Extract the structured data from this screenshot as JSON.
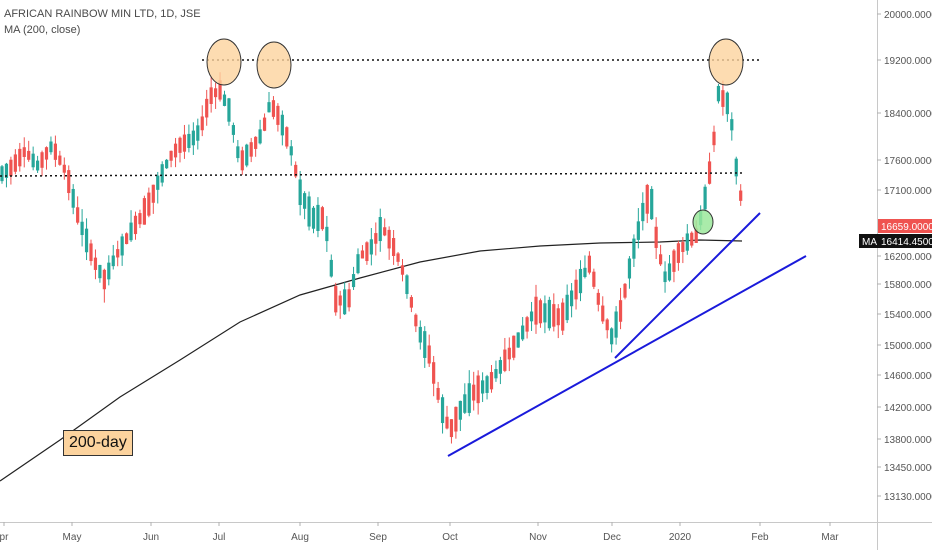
{
  "legend": {
    "title": "AFRICAN RAINBOW MIN LTD, 1D, JSE",
    "indicator": "MA (200, close)"
  },
  "annotation_label": "200-day",
  "price_tags": {
    "last": {
      "value": "16659.0000",
      "color": "#ef5350"
    },
    "ma_prefix": "MA",
    "ma": {
      "value": "16414.4500",
      "color": "#111111"
    }
  },
  "chart_data": {
    "type": "candlestick",
    "y_axis_ticks": [
      20000,
      19200,
      18400,
      17600,
      17100,
      16659,
      16200,
      15800,
      15400,
      15000,
      14600,
      14200,
      13800,
      13450,
      13130
    ],
    "y_axis_labels": [
      "20000.0000",
      "19200.0000",
      "18400.0000",
      "17600.0000",
      "17100.0000",
      "16659.0000",
      "16200.0000",
      "15800.0000",
      "15400.0000",
      "15000.0000",
      "14600.0000",
      "14200.0000",
      "13800.0000",
      "13450.0000",
      "13130.0000"
    ],
    "x_axis_labels": [
      "pr",
      "May",
      "Jun",
      "Jul",
      "Aug",
      "Sep",
      "Oct",
      "Nov",
      "Dec",
      "2020",
      "Feb",
      "Mar"
    ],
    "up_color": "#26a69a",
    "down_color": "#ef5350",
    "ma_color": "#222222",
    "trendline_color": "#1a1adb",
    "resistance_levels": [
      19200,
      17400
    ],
    "highlighted_tops": [
      "Jul",
      "late Jul",
      "mid Jan 2020"
    ],
    "highlight_color_tops": "#fcd39e",
    "highlight_color_breakout": "#9be89b"
  }
}
